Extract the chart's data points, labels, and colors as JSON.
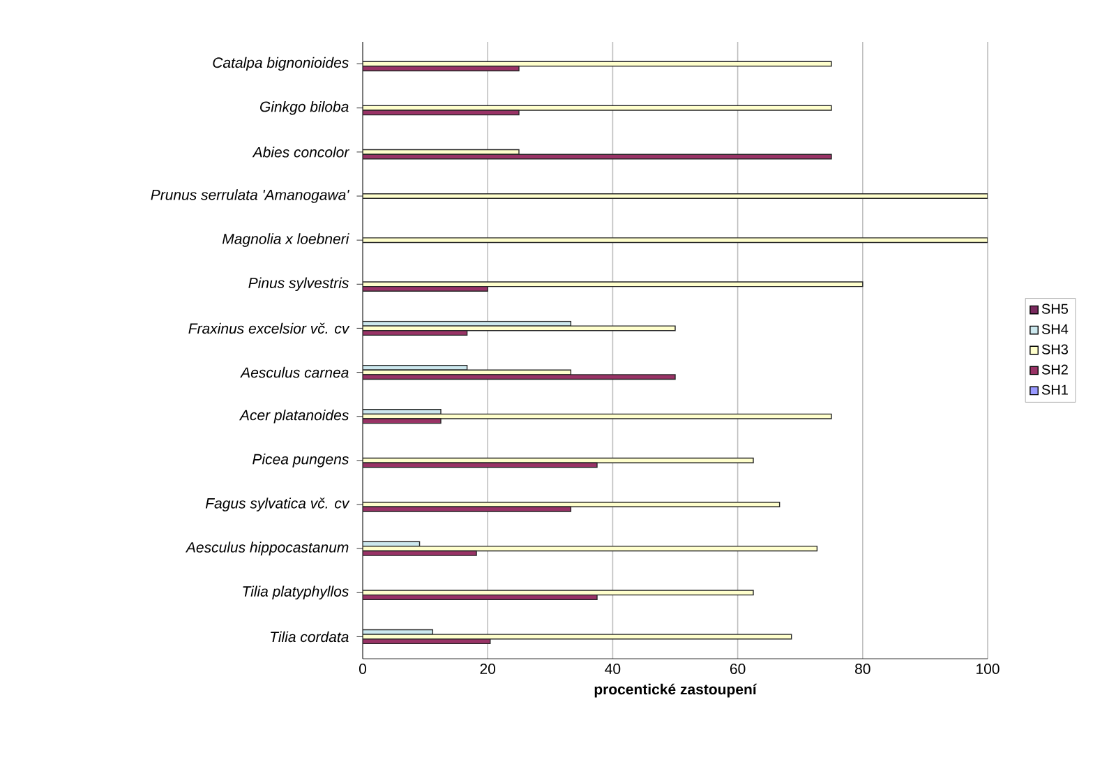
{
  "chart_data": {
    "type": "bar",
    "orientation": "horizontal",
    "xlabel": "procentické zastoupení",
    "categories": [
      "Catalpa bignonioides",
      "Ginkgo biloba",
      "Abies concolor",
      "Prunus serrulata 'Amanogawa'",
      "Magnolia x loebneri",
      "Pinus sylvestris",
      "Fraxinus excelsior vč. cv",
      "Aesculus carnea",
      "Acer platanoides",
      "Picea pungens",
      "Fagus sylvatica vč. cv",
      "Aesculus hippocastanum",
      "Tilia platyphyllos",
      "Tilia cordata"
    ],
    "series": [
      {
        "name": "SH1",
        "color": "#9999ff",
        "values": [
          null,
          null,
          null,
          null,
          null,
          null,
          null,
          null,
          null,
          null,
          null,
          null,
          null,
          null
        ]
      },
      {
        "name": "SH2",
        "color": "#993366",
        "values": [
          25,
          25,
          75,
          null,
          null,
          20,
          16.7,
          50,
          12.5,
          37.5,
          33.3,
          18.2,
          37.5,
          20.4
        ]
      },
      {
        "name": "SH3",
        "color": "#ffffcc",
        "values": [
          75,
          75,
          25,
          100,
          100,
          80,
          50,
          33.3,
          75,
          62.5,
          66.7,
          72.7,
          62.5,
          68.6
        ]
      },
      {
        "name": "SH4",
        "color": "#cce8ee",
        "values": [
          null,
          null,
          null,
          null,
          null,
          null,
          33.3,
          16.7,
          12.5,
          null,
          null,
          9.1,
          null,
          11.2
        ]
      },
      {
        "name": "SH5",
        "color": "#7a2a5e",
        "values": [
          null,
          null,
          null,
          null,
          null,
          null,
          null,
          null,
          null,
          null,
          null,
          null,
          null,
          null
        ]
      }
    ],
    "xlim": [
      0,
      100
    ],
    "xticks": [
      0,
      20,
      40,
      60,
      80,
      100
    ],
    "grid": "x",
    "legend": "right"
  }
}
